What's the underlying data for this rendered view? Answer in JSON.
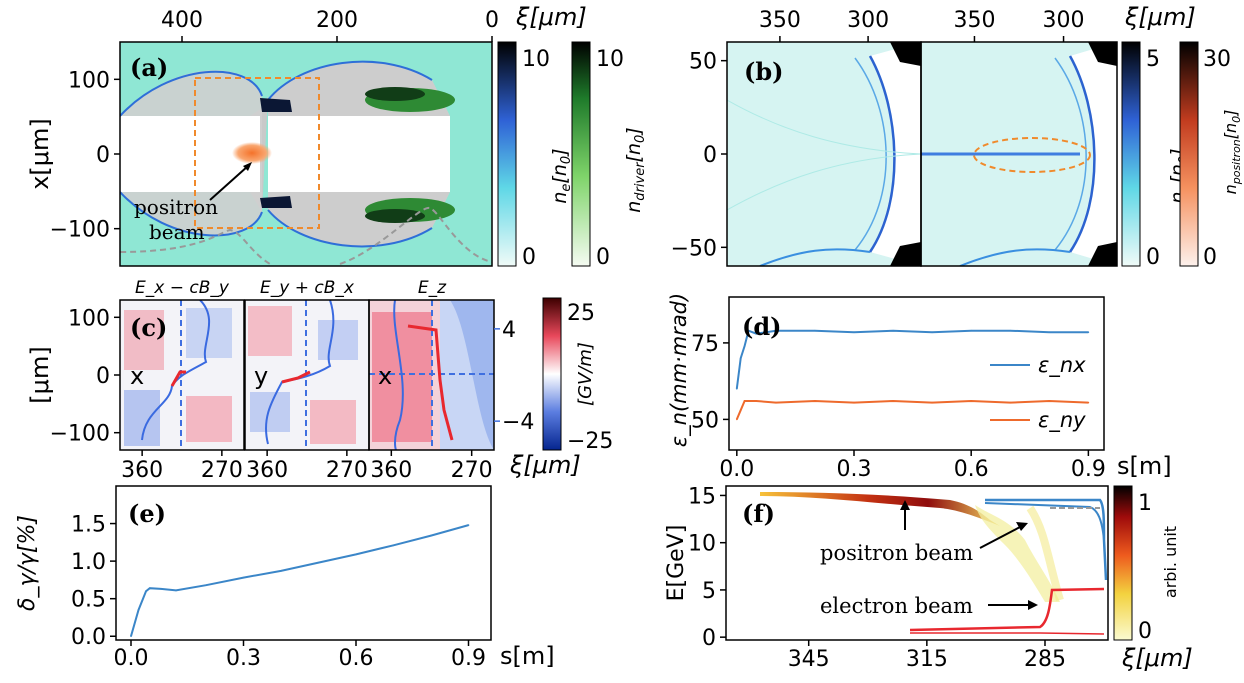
{
  "chart_data": [
    {
      "panel": "a",
      "type": "heatmap",
      "panel_label": "(a)",
      "x_ticks": [
        "400",
        "200",
        "0"
      ],
      "x_ticks_values": [
        400,
        200,
        0
      ],
      "xlabel": "ξ[μm]",
      "y_ticks": [
        "100",
        "0",
        "−100"
      ],
      "y_ticks_values": [
        100,
        0,
        -100
      ],
      "ylabel": "x[μm]",
      "xlim": [
        480,
        0
      ],
      "ylim": [
        -150,
        150
      ],
      "annotation": [
        "positron",
        "beam"
      ],
      "colorbars": [
        {
          "label": "n_e[n_0]",
          "ticks": [
            "10",
            "0"
          ],
          "range": [
            0,
            12
          ],
          "colormap": "cyan-blue-black"
        },
        {
          "label": "n_driver[n_0]",
          "ticks": [
            "10",
            "0"
          ],
          "range": [
            0,
            12
          ],
          "colormap": "white-green-black"
        }
      ]
    },
    {
      "panel": "b",
      "type": "heatmap",
      "panel_label": "(b)",
      "x_ticks": [
        "350",
        "300",
        "350",
        "300"
      ],
      "x_ticks_values": [
        350,
        300,
        350,
        300
      ],
      "xlabel": "ξ[μm]",
      "y_ticks": [
        "50",
        "0",
        "−50"
      ],
      "y_ticks_values": [
        50,
        0,
        -50
      ],
      "ylim": [
        -60,
        60
      ],
      "colorbars": [
        {
          "label": "n_e[n_0]",
          "ticks": [
            "5",
            "0"
          ],
          "range": [
            0,
            5.5
          ],
          "colormap": "cyan-blue-black"
        },
        {
          "label": "n_positron[n_0]",
          "ticks": [
            "30",
            "0"
          ],
          "range": [
            0,
            32
          ],
          "colormap": "white-orange-black"
        }
      ]
    },
    {
      "panel": "c",
      "type": "heatmap",
      "panel_label": "(c)",
      "subplot_titles": [
        "E_x − cB_y",
        "E_y + cB_x",
        "E_z"
      ],
      "inline_labels": [
        "x",
        "y",
        "x"
      ],
      "x_ticks": [
        "360",
        "270",
        "360",
        "270",
        "360",
        "270"
      ],
      "x_ticks_values": [
        360,
        270,
        360,
        270,
        360,
        270
      ],
      "xlabel": "ξ[μm]",
      "y_ticks": [
        "100",
        "0",
        "−100"
      ],
      "y_ticks_values": [
        100,
        0,
        -100
      ],
      "ylabel": "[μm]",
      "right_ticks": [
        "4",
        "−4"
      ],
      "right_ticks_values": [
        4,
        -4
      ],
      "colorbar": {
        "label": "[GV/m]",
        "ticks": [
          "25",
          "−25"
        ],
        "range": [
          -28,
          28
        ],
        "colormap": "blue-white-red"
      }
    },
    {
      "panel": "d",
      "type": "line",
      "panel_label": "(d)",
      "xlabel": "s[m]",
      "ylabel": "ε_n(mm·mrad)",
      "x_ticks": [
        "0.0",
        "0.3",
        "0.6",
        "0.9"
      ],
      "x_ticks_values": [
        0.0,
        0.3,
        0.6,
        0.9
      ],
      "y_ticks": [
        "75",
        "50"
      ],
      "y_ticks_values": [
        75,
        50
      ],
      "xlim": [
        -0.02,
        0.94
      ],
      "ylim": [
        40,
        90
      ],
      "legend_position": "right",
      "series": [
        {
          "name": "ε_nx",
          "color": "#3b86c8",
          "x": [
            0.0,
            0.01,
            0.02,
            0.03,
            0.05,
            0.1,
            0.2,
            0.3,
            0.4,
            0.5,
            0.6,
            0.7,
            0.8,
            0.9
          ],
          "values": [
            60,
            70,
            74,
            79,
            78,
            79,
            79,
            78.5,
            79,
            78.5,
            79,
            79,
            78.5,
            78.5
          ]
        },
        {
          "name": "ε_ny",
          "color": "#ee6a2c",
          "x": [
            0.0,
            0.01,
            0.02,
            0.03,
            0.05,
            0.1,
            0.2,
            0.3,
            0.4,
            0.5,
            0.6,
            0.7,
            0.8,
            0.9
          ],
          "values": [
            50,
            53,
            56,
            56,
            56,
            55.5,
            56,
            55.5,
            56,
            55.5,
            56,
            55.5,
            56,
            55.5
          ]
        }
      ]
    },
    {
      "panel": "e",
      "type": "line",
      "panel_label": "(e)",
      "xlabel": "s[m]",
      "ylabel": "δ_γ/γ[%]",
      "x_ticks": [
        "0.0",
        "0.3",
        "0.6",
        "0.9"
      ],
      "x_ticks_values": [
        0.0,
        0.3,
        0.6,
        0.9
      ],
      "y_ticks": [
        "1.5",
        "1.0",
        "0.5",
        "0.0"
      ],
      "y_ticks_values": [
        1.5,
        1.0,
        0.5,
        0.0
      ],
      "xlim": [
        -0.04,
        0.96
      ],
      "ylim": [
        -0.05,
        2.0
      ],
      "series": [
        {
          "color": "#3b86c8",
          "x": [
            0.0,
            0.02,
            0.04,
            0.05,
            0.08,
            0.12,
            0.2,
            0.3,
            0.4,
            0.5,
            0.6,
            0.7,
            0.8,
            0.9
          ],
          "values": [
            0.0,
            0.35,
            0.6,
            0.64,
            0.63,
            0.61,
            0.68,
            0.78,
            0.87,
            0.98,
            1.09,
            1.21,
            1.34,
            1.48
          ]
        }
      ]
    },
    {
      "panel": "f",
      "type": "heatmap",
      "panel_label": "(f)",
      "xlabel": "ξ[μm]",
      "ylabel": "E[GeV]",
      "x_ticks": [
        "345",
        "315",
        "285"
      ],
      "x_ticks_values": [
        345,
        315,
        285
      ],
      "y_ticks": [
        "15",
        "10",
        "5",
        "0"
      ],
      "y_ticks_values": [
        15,
        10,
        5,
        0
      ],
      "xlim": [
        366,
        269
      ],
      "ylim": [
        -0.3,
        16
      ],
      "annotations": [
        "positron beam",
        "electron beam"
      ],
      "colorbar": {
        "label": "arbi. unit",
        "ticks": [
          "1",
          "0"
        ],
        "range": [
          0,
          1.1
        ],
        "colormap": "yellow-red-black"
      }
    }
  ]
}
